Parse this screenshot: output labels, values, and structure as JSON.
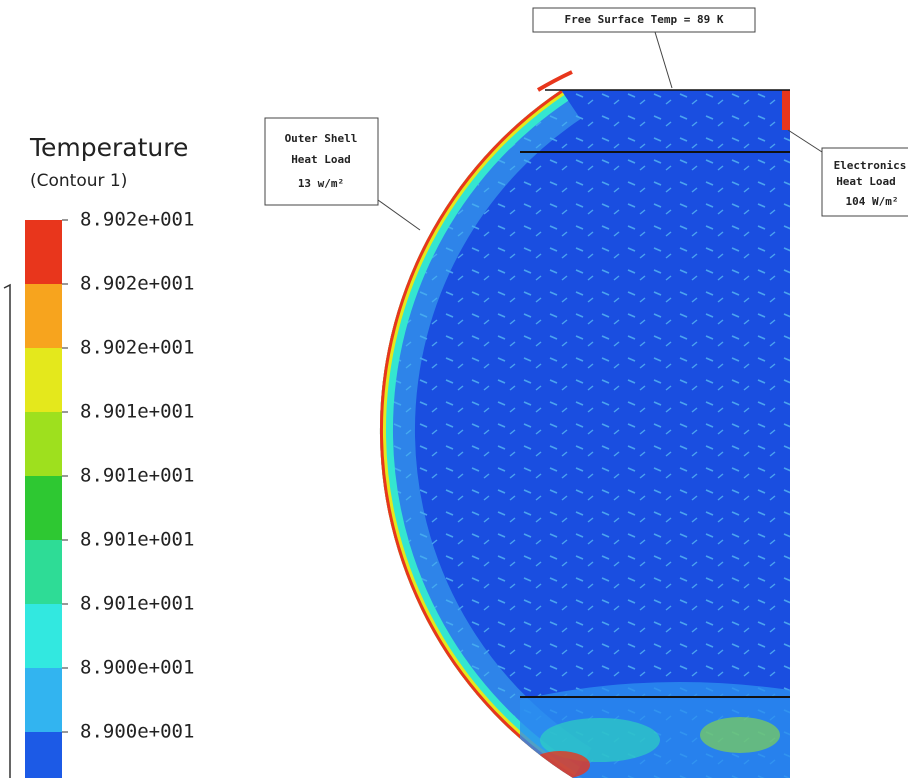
{
  "legend": {
    "title": "Temperature",
    "subtitle": "(Contour  1)",
    "labels": [
      "8.902e+001",
      "8.902e+001",
      "8.902e+001",
      "8.901e+001",
      "8.901e+001",
      "8.901e+001",
      "8.901e+001",
      "8.900e+001",
      "8.900e+001"
    ],
    "colors": [
      "#e8361c",
      "#f7a41e",
      "#e4e81c",
      "#9ee01e",
      "#2ec832",
      "#2edc96",
      "#32e8e0",
      "#32b4f0",
      "#1c5ae6"
    ]
  },
  "annotations": {
    "free_surface": "Free Surface Temp = 89 K",
    "outer_shell": [
      "Outer Shell",
      "Heat Load",
      "13 w/m²"
    ],
    "electronics": [
      "Electronics",
      "Heat Load",
      "104 W/m²"
    ]
  }
}
